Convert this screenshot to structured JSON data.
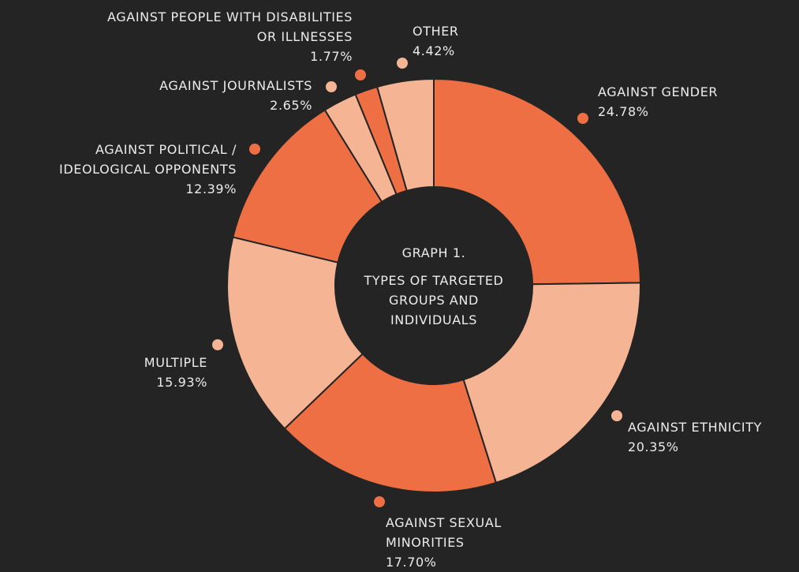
{
  "chart_data": {
    "type": "donut",
    "title": "GRAPH 1.",
    "subtitle": "TYPES OF TARGETED GROUPS AND INDIVIDUALS",
    "categories": [
      "AGAINST GENDER",
      "AGAINST ETHNICITY",
      "AGAINST SEXUAL MINORITIES",
      "MULTIPLE",
      "AGAINST POLITICAL / IDEOLOGICAL OPPONENTS",
      "AGAINST JOURNALISTS",
      "AGAINST PEOPLE WITH DISABILITIES OR ILLNESSES",
      "OTHER"
    ],
    "values": [
      24.78,
      20.35,
      17.7,
      15.93,
      12.39,
      2.65,
      1.77,
      4.42
    ],
    "value_labels": [
      "24.78%",
      "20.35%",
      "17.70%",
      "15.93%",
      "12.39%",
      "2.65%",
      "1.77%",
      "4.42%"
    ],
    "colors": [
      "#ee6f43",
      "#f5b594",
      "#ee6f43",
      "#f5b594",
      "#ee6f43",
      "#f5b594",
      "#ee6f43",
      "#f5b594"
    ]
  }
}
